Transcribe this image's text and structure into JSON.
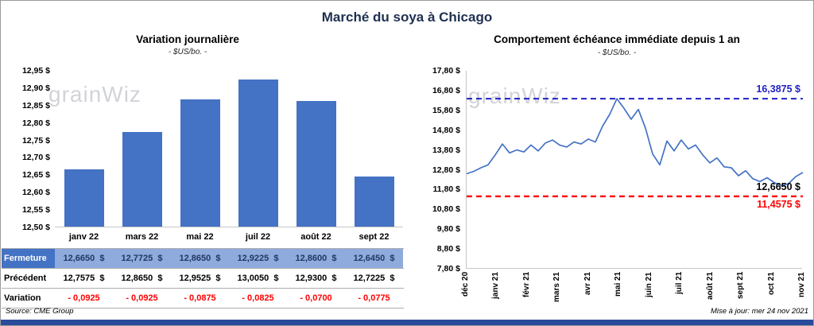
{
  "title": "Marché du soya à Chicago",
  "watermark": "grainWiz",
  "chart_data": [
    {
      "type": "bar",
      "title": "Variation journalière",
      "subtitle": "- $US/bo. -",
      "categories": [
        "janv 22",
        "mars 22",
        "mai 22",
        "juil 22",
        "août 22",
        "sept 22"
      ],
      "values": [
        12.665,
        12.7725,
        12.865,
        12.9225,
        12.86,
        12.645
      ],
      "ylim": [
        12.5,
        12.95
      ],
      "ytick_step": 0.05,
      "ytick_labels": [
        "12,50 $",
        "12,55 $",
        "12,60 $",
        "12,65 $",
        "12,70 $",
        "12,75 $",
        "12,80 $",
        "12,85 $",
        "12,90 $",
        "12,95 $"
      ],
      "grid": false,
      "bar_color": "#4472C4"
    },
    {
      "type": "line",
      "title": "Comportement échéance immédiate depuis 1 an",
      "subtitle": "- $US/bo. -",
      "x_labels": [
        "déc 20",
        "janv 21",
        "févr 21",
        "mars 21",
        "avr 21",
        "mai 21",
        "juin 21",
        "juil 21",
        "août 21",
        "sept 21",
        "oct 21",
        "nov 21"
      ],
      "values": [
        12.6,
        12.72,
        12.9,
        13.05,
        13.55,
        14.1,
        13.65,
        13.8,
        13.7,
        14.05,
        13.75,
        14.15,
        14.3,
        14.05,
        13.95,
        14.2,
        14.1,
        14.35,
        14.2,
        15.0,
        15.6,
        16.39,
        15.9,
        15.35,
        15.85,
        14.9,
        13.6,
        13.05,
        14.25,
        13.75,
        14.3,
        13.85,
        14.05,
        13.55,
        13.15,
        13.4,
        12.95,
        12.9,
        12.5,
        12.75,
        12.35,
        12.2,
        12.4,
        12.15,
        12.0,
        12.1,
        12.45,
        12.665
      ],
      "ylim": [
        7.8,
        17.8
      ],
      "ytick_step": 1.0,
      "ytick_labels": [
        "7,80 $",
        "8,80 $",
        "9,80 $",
        "10,80 $",
        "11,80 $",
        "12,80 $",
        "13,80 $",
        "14,80 $",
        "15,80 $",
        "16,80 $",
        "17,80 $"
      ],
      "grid": false,
      "line_color": "#4472C4",
      "max_line": {
        "value": 16.3875,
        "label": "16,3875 $"
      },
      "min_line": {
        "value": 11.4575,
        "label": "11,4575 $"
      },
      "last_label": {
        "value": 12.665,
        "label": "12,6650 $"
      }
    }
  ],
  "table": {
    "rows": [
      {
        "key": "fermeture",
        "label": "Fermeture",
        "values": [
          "12,6650  $",
          "12,7725  $",
          "12,8650  $",
          "12,9225  $",
          "12,8600  $",
          "12,6450  $"
        ]
      },
      {
        "key": "precedent",
        "label": "Précédent",
        "values": [
          "12,7575  $",
          "12,8650  $",
          "12,9525  $",
          "13,0050  $",
          "12,9300  $",
          "12,7225  $"
        ]
      },
      {
        "key": "variation",
        "label": "Variation",
        "values": [
          "- 0,0925",
          "- 0,0925",
          "- 0,0875",
          "- 0,0825",
          "- 0,0700",
          "- 0,0775"
        ]
      }
    ]
  },
  "footer": {
    "source": "Source: CME Group",
    "updated": "Mise à jour: mer 24 nov 2021"
  },
  "colors": {
    "accent": "#4472C4",
    "max_line": "#2121C8",
    "min_line": "#FF0000",
    "negative": "#FF0000",
    "fermeture_label_bg": "#4472C4",
    "fermeture_value_bg": "#8FAADC",
    "fermeture_text": "#1F3864",
    "title_color": "#1F3050",
    "bottom_bar": "#2A4B9B",
    "watermark": "#C2C5CB"
  }
}
